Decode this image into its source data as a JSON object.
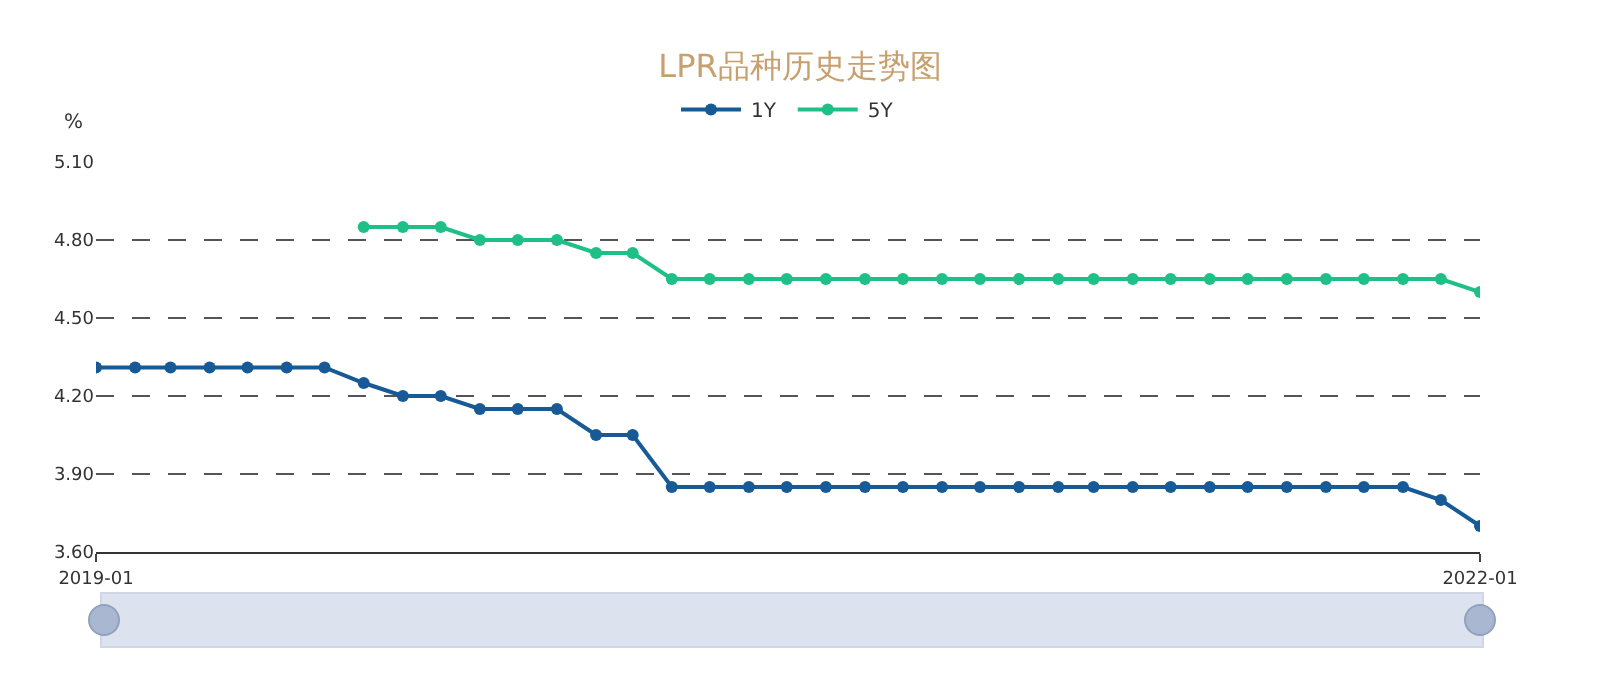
{
  "chart_data": {
    "type": "line",
    "title": "LPR品种历史走势图",
    "ylabel": "%",
    "x": [
      "2019-01",
      "2019-02",
      "2019-03",
      "2019-04",
      "2019-05",
      "2019-06",
      "2019-07",
      "2019-08",
      "2019-09",
      "2019-10",
      "2019-11",
      "2019-12",
      "2020-01",
      "2020-02",
      "2020-03",
      "2020-04",
      "2020-05",
      "2020-06",
      "2020-07",
      "2020-08",
      "2020-09",
      "2020-10",
      "2020-11",
      "2020-12",
      "2021-01",
      "2021-02",
      "2021-03",
      "2021-04",
      "2021-05",
      "2021-06",
      "2021-07",
      "2021-08",
      "2021-09",
      "2021-10",
      "2021-11",
      "2021-12",
      "2022-01"
    ],
    "series": [
      {
        "name": "1Y",
        "color": "#175a96",
        "values": [
          4.31,
          4.31,
          4.31,
          4.31,
          4.31,
          4.31,
          4.31,
          4.25,
          4.2,
          4.2,
          4.15,
          4.15,
          4.15,
          4.05,
          4.05,
          3.85,
          3.85,
          3.85,
          3.85,
          3.85,
          3.85,
          3.85,
          3.85,
          3.85,
          3.85,
          3.85,
          3.85,
          3.85,
          3.85,
          3.85,
          3.85,
          3.85,
          3.85,
          3.85,
          3.85,
          3.8,
          3.7
        ]
      },
      {
        "name": "5Y",
        "color": "#1fc087",
        "values": [
          null,
          null,
          null,
          null,
          null,
          null,
          null,
          4.85,
          4.85,
          4.85,
          4.8,
          4.8,
          4.8,
          4.75,
          4.75,
          4.65,
          4.65,
          4.65,
          4.65,
          4.65,
          4.65,
          4.65,
          4.65,
          4.65,
          4.65,
          4.65,
          4.65,
          4.65,
          4.65,
          4.65,
          4.65,
          4.65,
          4.65,
          4.65,
          4.65,
          4.65,
          4.6
        ]
      }
    ],
    "xlim": [
      "2019-01",
      "2022-01"
    ],
    "xticks": [
      "2019-01",
      "2022-01"
    ],
    "ylim": [
      3.6,
      5.1
    ],
    "yticks": [
      {
        "value": 3.6,
        "label": "3.60"
      },
      {
        "value": 3.9,
        "label": "3.90"
      },
      {
        "value": 4.2,
        "label": "4.20"
      },
      {
        "value": 4.5,
        "label": "4.50"
      },
      {
        "value": 4.8,
        "label": "4.80"
      },
      {
        "value": 5.1,
        "label": "5.10"
      }
    ],
    "grid": "y",
    "legend": "top",
    "marker": "circle",
    "line_style": "solid"
  }
}
